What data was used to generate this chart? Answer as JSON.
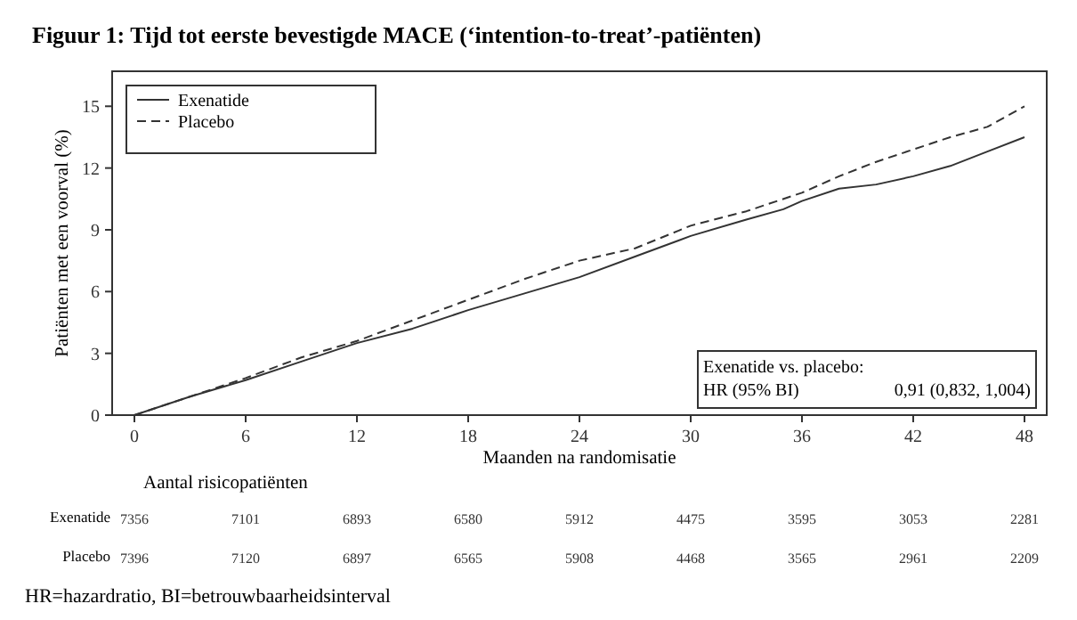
{
  "chart_data": {
    "type": "line",
    "title": "Figuur 1: Tijd tot eerste bevestigde MACE (‘intention-to-treat’-patiënten)",
    "xlabel": "Maanden na randomisatie",
    "ylabel": "Patiënten met een voorval (%)",
    "xlim": [
      -1.2,
      49.2
    ],
    "ylim": [
      0,
      16.7
    ],
    "xticks": [
      0,
      6,
      12,
      18,
      24,
      30,
      36,
      42,
      48
    ],
    "yticks": [
      0,
      3,
      6,
      9,
      12,
      15
    ],
    "legend": "top left",
    "grid": false,
    "series": [
      {
        "name": "Exenatide",
        "color": "#333333",
        "line_style": "solid",
        "x": [
          0,
          3,
          6,
          9,
          12,
          15,
          18,
          21,
          24,
          27,
          30,
          33,
          35,
          36,
          38,
          40,
          42,
          44,
          46,
          48
        ],
        "values": [
          0,
          0.9,
          1.7,
          2.6,
          3.5,
          4.2,
          5.1,
          5.9,
          6.7,
          7.7,
          8.7,
          9.5,
          10.0,
          10.4,
          11.0,
          11.2,
          11.6,
          12.1,
          12.8,
          13.5
        ]
      },
      {
        "name": "Placebo",
        "color": "#333333",
        "line_style": "dashed",
        "x": [
          0,
          3,
          6,
          9,
          12,
          15,
          18,
          21,
          24,
          27,
          30,
          33,
          36,
          38,
          40,
          42,
          44,
          46,
          48
        ],
        "values": [
          0,
          0.9,
          1.8,
          2.8,
          3.6,
          4.6,
          5.6,
          6.6,
          7.5,
          8.1,
          9.2,
          9.9,
          10.8,
          11.6,
          12.3,
          12.9,
          13.5,
          14.0,
          15.0
        ]
      }
    ],
    "annotations": [
      "Exenatide vs. placebo:",
      "HR (95% BI)",
      "0,91 (0,832, 1,004)",
      "Aantal risicopatiënten",
      "Exenatide",
      "7356",
      "7101",
      "6893",
      "6580",
      "5912",
      "4475",
      "3595",
      "3053",
      "2281",
      "Placebo",
      "7396",
      "7120",
      "6897",
      "6565",
      "5908",
      "4468",
      "3565",
      "2961",
      "2209",
      "HR=hazardratio, BI=betrouwbaarheidsinterval"
    ]
  }
}
